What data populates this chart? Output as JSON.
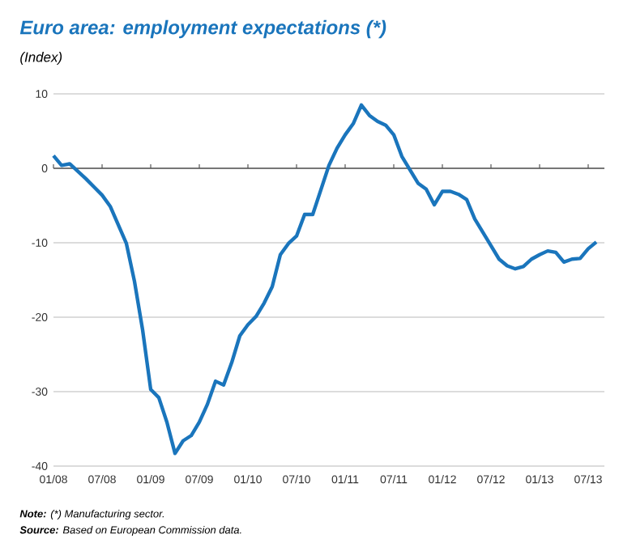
{
  "chart_data": {
    "type": "line",
    "title": "Euro area: employment expectations (*)",
    "subtitle": "(Index)",
    "x": [
      "2008-01",
      "2008-02",
      "2008-03",
      "2008-04",
      "2008-05",
      "2008-06",
      "2008-07",
      "2008-08",
      "2008-09",
      "2008-10",
      "2008-11",
      "2008-12",
      "2009-01",
      "2009-02",
      "2009-03",
      "2009-04",
      "2009-05",
      "2009-06",
      "2009-07",
      "2009-08",
      "2009-09",
      "2009-10",
      "2009-11",
      "2009-12",
      "2010-01",
      "2010-02",
      "2010-03",
      "2010-04",
      "2010-05",
      "2010-06",
      "2010-07",
      "2010-08",
      "2010-09",
      "2010-10",
      "2010-11",
      "2010-12",
      "2011-01",
      "2011-02",
      "2011-03",
      "2011-04",
      "2011-05",
      "2011-06",
      "2011-07",
      "2011-08",
      "2011-09",
      "2011-10",
      "2011-11",
      "2011-12",
      "2012-01",
      "2012-02",
      "2012-03",
      "2012-04",
      "2012-05",
      "2012-06",
      "2012-07",
      "2012-08",
      "2012-09",
      "2012-10",
      "2012-11",
      "2012-12",
      "2013-01",
      "2013-02",
      "2013-03",
      "2013-04",
      "2013-05",
      "2013-06",
      "2013-07",
      "2013-08"
    ],
    "series": [
      {
        "color": "#1a75bc",
        "values": [
          1.7,
          0.4,
          0.6,
          -0.4,
          -1.4,
          -2.5,
          -3.6,
          -5.1,
          -7.6,
          -10.1,
          -15.2,
          -21.7,
          -29.7,
          -30.8,
          -34.1,
          -38.3,
          -36.6,
          -35.9,
          -34.1,
          -31.7,
          -28.6,
          -29.1,
          -26.1,
          -22.5,
          -21.0,
          -19.9,
          -18.1,
          -15.9,
          -11.6,
          -10.1,
          -9.1,
          -6.2,
          -6.2,
          -2.9,
          0.4,
          2.7,
          4.5,
          6.0,
          8.5,
          7.1,
          6.3,
          5.8,
          4.5,
          1.6,
          -0.2,
          -2.0,
          -2.8,
          -4.9,
          -3.1,
          -3.1,
          -3.5,
          -4.2,
          -6.8,
          -8.6,
          -10.4,
          -12.2,
          -13.1,
          -13.5,
          -13.2,
          -12.2,
          -11.6,
          -11.1,
          -11.3,
          -12.6,
          -12.2,
          -12.1,
          -10.8,
          -9.9
        ]
      }
    ],
    "xlim": [
      "2008-01",
      "2013-09"
    ],
    "xticks": [
      {
        "value": "2008-01",
        "label": "01/08"
      },
      {
        "value": "2008-07",
        "label": "07/08"
      },
      {
        "value": "2009-01",
        "label": "01/09"
      },
      {
        "value": "2009-07",
        "label": "07/09"
      },
      {
        "value": "2010-01",
        "label": "01/10"
      },
      {
        "value": "2010-07",
        "label": "07/10"
      },
      {
        "value": "2011-01",
        "label": "01/11"
      },
      {
        "value": "2011-07",
        "label": "07/11"
      },
      {
        "value": "2012-01",
        "label": "01/12"
      },
      {
        "value": "2012-07",
        "label": "07/12"
      },
      {
        "value": "2013-01",
        "label": "01/13"
      },
      {
        "value": "2013-07",
        "label": "07/13"
      }
    ],
    "ylim": [
      -40,
      10
    ],
    "yticks": [
      -40,
      -30,
      -20,
      -10,
      0,
      10
    ],
    "grid": "y",
    "ref_lines": [
      {
        "axis": "y",
        "value": 0,
        "color": "#555555"
      }
    ],
    "annotations": [
      "**Note:** (*) Manufacturing sector.",
      "**Source:** Based on European Commission data."
    ]
  }
}
